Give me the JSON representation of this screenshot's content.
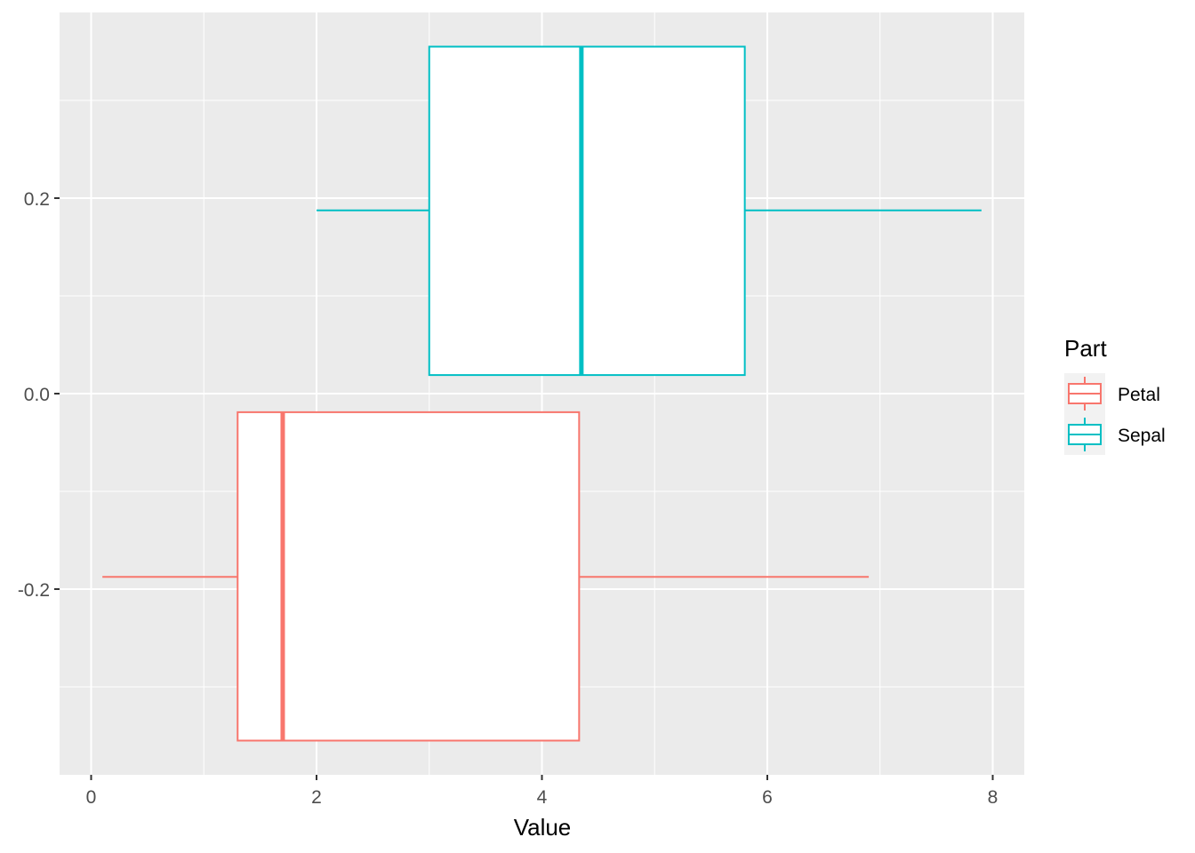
{
  "chart_data": {
    "type": "boxplot",
    "orientation": "horizontal",
    "xlabel": "Value",
    "ylabel": "",
    "xlim": [
      -0.28,
      8.28
    ],
    "ylim": [
      -0.39,
      0.39
    ],
    "x_ticks": [
      0,
      2,
      4,
      6,
      8
    ],
    "x_tick_labels": [
      "0",
      "2",
      "4",
      "6",
      "8"
    ],
    "y_ticks": [
      -0.2,
      0.0,
      0.2
    ],
    "y_tick_labels": [
      "-0.2",
      "0.0",
      "0.2"
    ],
    "grid": true,
    "legend": {
      "title": "Part",
      "placement": "right",
      "entries": [
        "Petal",
        "Sepal"
      ]
    },
    "series": [
      {
        "name": "Petal",
        "color": "#F8766D",
        "min": 0.1,
        "q1": 1.3,
        "median": 1.7,
        "q3": 4.33,
        "max": 6.9,
        "ymin": -0.355,
        "ymax": -0.019,
        "y": -0.1875
      },
      {
        "name": "Sepal",
        "color": "#00BFC4",
        "min": 2.0,
        "q1": 3.0,
        "median": 4.35,
        "q3": 5.8,
        "max": 7.9,
        "ymin": 0.019,
        "ymax": 0.355,
        "y": 0.1875
      }
    ]
  }
}
